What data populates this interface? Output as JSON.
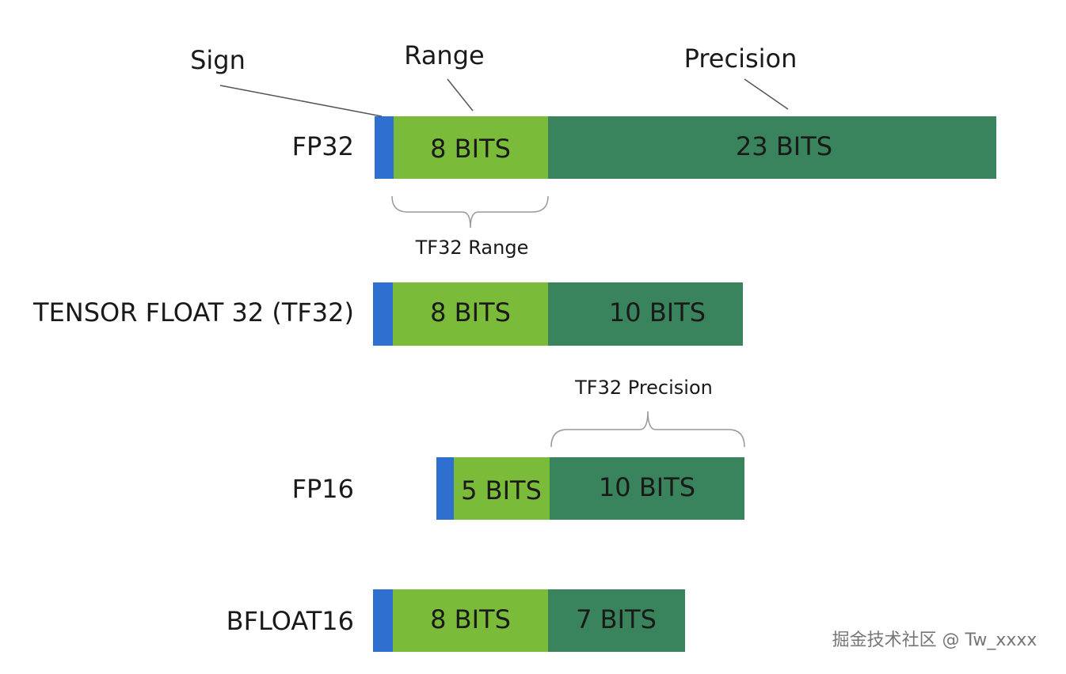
{
  "header": {
    "sign": "Sign",
    "range": "Range",
    "precision": "Precision"
  },
  "rows": [
    {
      "name": "FP32",
      "exponent": "8 BITS",
      "mantissa": "23 BITS"
    },
    {
      "name": "TENSOR FLOAT 32 (TF32)",
      "exponent": "8 BITS",
      "mantissa": "10 BITS"
    },
    {
      "name": "FP16",
      "exponent": "5 BITS",
      "mantissa": "10 BITS"
    },
    {
      "name": "BFLOAT16",
      "exponent": "8 BITS",
      "mantissa": "7 BITS"
    }
  ],
  "annotations": {
    "tf32_range": "TF32 Range",
    "tf32_precision": "TF32 Precision"
  },
  "watermark": "掘金技术社区 @ Tw_xxxx"
}
